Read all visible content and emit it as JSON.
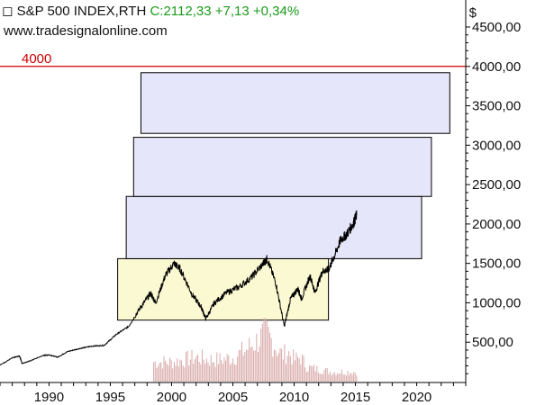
{
  "header": {
    "marker": "◻",
    "symbol": "S&P 500 INDEX,RTH",
    "close_text": "C:2112,33 +7,13 +0,34%",
    "website": "www.tradesignalonline.com",
    "currency": "$"
  },
  "colors": {
    "close_green": "#1a9a1a",
    "level_red": "#cc0000",
    "box_blue_fill": "#e6e6fa",
    "box_yellow_fill": "#fbf9d2",
    "volume_bar": "#d9a9a9",
    "price_line": "#000000"
  },
  "chart_data": {
    "type": "line",
    "title": "S&P 500 INDEX,RTH",
    "x_range": [
      1986,
      2024
    ],
    "y_range": [
      0,
      4500
    ],
    "x_ticks": [
      "1990",
      "1995",
      "2000",
      "2005",
      "2010",
      "2015",
      "2020"
    ],
    "y_ticks": [
      "500,00",
      "1000,00",
      "1500,00",
      "2000,00",
      "2500,00",
      "3000,00",
      "3500,00",
      "4000,00",
      "4500,00"
    ],
    "last_close": 2112.33,
    "change": 7.13,
    "change_pct": 0.34,
    "horizontal_line": {
      "value": 4000,
      "label": "4000"
    },
    "series": [
      {
        "x": [
          1986.0,
          1987.0,
          1987.6,
          1987.8,
          1988.5,
          1989.5,
          1990.0,
          1990.7,
          1991.5,
          1992.5,
          1993.5,
          1994.5,
          1995.5,
          1996.5,
          1997.5,
          1998.3,
          1998.7,
          1999.5,
          2000.2,
          2000.7,
          2001.7,
          2002.4,
          2002.8,
          2003.5,
          2004.5,
          2005.5,
          2006.5,
          2007.5,
          2007.8,
          2008.5,
          2009.2,
          2009.7,
          2010.3,
          2010.6,
          2011.3,
          2011.7,
          2012.3,
          2012.8,
          2013.3,
          2013.8,
          2014.3,
          2014.8,
          2015.1
        ],
        "values": [
          210,
          300,
          325,
          230,
          265,
          330,
          340,
          310,
          380,
          420,
          450,
          460,
          600,
          700,
          950,
          1120,
          1000,
          1350,
          1500,
          1430,
          1100,
          950,
          800,
          1000,
          1130,
          1200,
          1320,
          1500,
          1560,
          1250,
          700,
          1050,
          1180,
          1050,
          1340,
          1130,
          1400,
          1420,
          1600,
          1800,
          1870,
          2000,
          2112
        ]
      }
    ],
    "volume": {
      "x": [
        2000,
        2001,
        2002,
        2003,
        2004,
        2005,
        2006,
        2007,
        2007.7,
        2008,
        2008.5,
        2009,
        2009.5,
        2010,
        2010.5,
        2011,
        2012,
        2013,
        2014,
        2015
      ],
      "values": [
        0.4,
        0.45,
        0.5,
        0.45,
        0.45,
        0.5,
        0.65,
        0.85,
        1.0,
        0.9,
        0.7,
        0.55,
        0.6,
        0.45,
        0.5,
        0.3,
        0.25,
        0.2,
        0.2,
        0.2
      ]
    },
    "boxes": [
      {
        "x0": 1995.6,
        "x1": 2012.8,
        "y0": 780,
        "y1": 1560,
        "color": "yellow"
      },
      {
        "x0": 1996.3,
        "x1": 2020.4,
        "y0": 1560,
        "y1": 2350,
        "color": "blue"
      },
      {
        "x0": 1996.9,
        "x1": 2021.2,
        "y0": 2350,
        "y1": 3100,
        "color": "blue"
      },
      {
        "x0": 1997.5,
        "x1": 2022.7,
        "y0": 3150,
        "y1": 3920,
        "color": "blue"
      }
    ],
    "grid": false,
    "legend": "none"
  }
}
